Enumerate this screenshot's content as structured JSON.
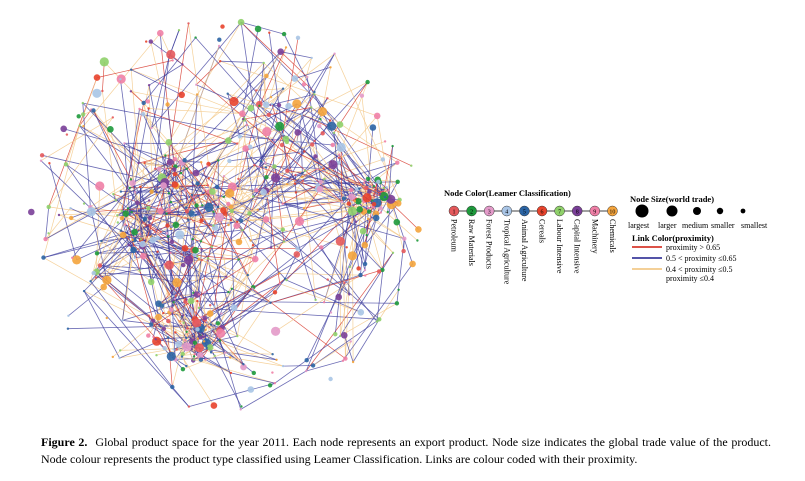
{
  "legend": {
    "node_color": {
      "title": "Node Color(Leamer Classification)",
      "categories": [
        {
          "index": "1",
          "label": "Petroleum",
          "color": "#e4595b"
        },
        {
          "index": "2",
          "label": "Raw Materials",
          "color": "#1e9a3c"
        },
        {
          "index": "3",
          "label": "Forest Products",
          "color": "#e39ac9"
        },
        {
          "index": "4",
          "label": "Tropical Agriculture",
          "color": "#a9c5e6"
        },
        {
          "index": "5",
          "label": "Animal Agriculture",
          "color": "#2b64a4"
        },
        {
          "index": "6",
          "label": "Cereals",
          "color": "#e8432c"
        },
        {
          "index": "7",
          "label": "Labour Intensive",
          "color": "#8fd06a"
        },
        {
          "index": "8",
          "label": "Capital Intensive",
          "color": "#7a3f98"
        },
        {
          "index": "9",
          "label": "Machinery",
          "color": "#ef7fa6"
        },
        {
          "index": "10",
          "label": "Chemicals",
          "color": "#f4a43c"
        }
      ]
    },
    "node_size": {
      "title": "Node Size(world trade)",
      "labels": [
        "largest",
        "larger",
        "medium",
        "smaller",
        "smallest"
      ]
    },
    "link_color": {
      "title": "Link Color(proximity)",
      "items": [
        {
          "label": "proximity > 0.65",
          "color": "#d73a2e"
        },
        {
          "label": "0.5 < proximity ≤0.65",
          "color": "#3b3b9c"
        },
        {
          "label": "0.4 < proximity ≤0.5",
          "color": "#f3c98a"
        },
        {
          "label": "proximity ≤0.4",
          "color": "#ffffff"
        }
      ]
    }
  },
  "caption": {
    "label": "Figure 2.",
    "text": "Global product space for the year 2011. Each node represents an export product. Node size indicates the global trade value of the product. Node colour represents the product type classified using Leamer Classification. Links are colour coded with their proximity."
  }
}
